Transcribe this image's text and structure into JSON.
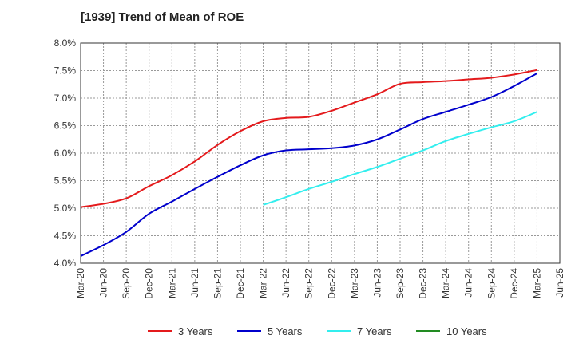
{
  "chart_data": {
    "type": "line",
    "title": "[1939]  Trend of Mean of ROE",
    "xlabel": "",
    "ylabel": "",
    "ylim": [
      4.0,
      8.0
    ],
    "y_ticks": [
      "4.0%",
      "4.5%",
      "5.0%",
      "5.5%",
      "6.0%",
      "6.5%",
      "7.0%",
      "7.5%",
      "8.0%"
    ],
    "x_categories": [
      "Mar-20",
      "Jun-20",
      "Sep-20",
      "Dec-20",
      "Mar-21",
      "Jun-21",
      "Sep-21",
      "Dec-21",
      "Mar-22",
      "Jun-22",
      "Sep-22",
      "Dec-22",
      "Mar-23",
      "Jun-23",
      "Sep-23",
      "Dec-23",
      "Mar-24",
      "Jun-24",
      "Sep-24",
      "Dec-24",
      "Mar-25",
      "Jun-25"
    ],
    "grid": true,
    "legend_position": "bottom",
    "series": [
      {
        "name": "3 Years",
        "color": "#e41a1c",
        "values": [
          5.02,
          5.08,
          5.18,
          5.4,
          5.6,
          5.85,
          6.15,
          6.4,
          6.58,
          6.64,
          6.66,
          6.77,
          6.92,
          7.07,
          7.26,
          7.29,
          7.31,
          7.34,
          7.37,
          7.43,
          7.51,
          null
        ]
      },
      {
        "name": "5 Years",
        "color": "#0000cc",
        "values": [
          4.13,
          4.33,
          4.57,
          4.9,
          5.12,
          5.35,
          5.57,
          5.78,
          5.96,
          6.05,
          6.07,
          6.09,
          6.14,
          6.25,
          6.43,
          6.62,
          6.75,
          6.88,
          7.02,
          7.22,
          7.45,
          null
        ]
      },
      {
        "name": "7 Years",
        "color": "#33eeee",
        "values": [
          null,
          null,
          null,
          null,
          null,
          null,
          null,
          null,
          5.06,
          5.2,
          5.35,
          5.48,
          5.62,
          5.75,
          5.9,
          6.05,
          6.22,
          6.35,
          6.47,
          6.58,
          6.75,
          null
        ]
      },
      {
        "name": "10 Years",
        "color": "#228b22",
        "values": [
          null,
          null,
          null,
          null,
          null,
          null,
          null,
          null,
          null,
          null,
          null,
          null,
          null,
          null,
          null,
          null,
          null,
          null,
          null,
          null,
          null,
          null
        ]
      }
    ]
  }
}
